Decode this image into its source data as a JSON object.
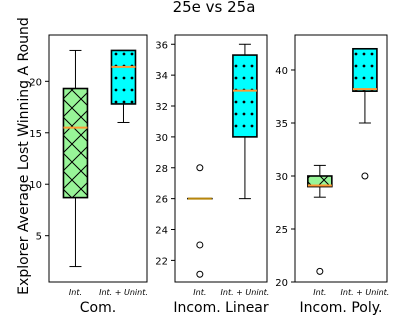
{
  "chart_data": {
    "type": "box",
    "title": "25e vs 25a",
    "ylabel": "Explorer Average Lost Winning A Round",
    "colors": {
      "int_fill": "#98f598",
      "unint_fill": "#00ffff",
      "median": "#ff9933",
      "median_int_linear": "#b8860b",
      "box_edge": "#000000"
    },
    "panels": [
      {
        "xlabel": "Com.",
        "categories": [
          "Int.",
          "Int. + Unint."
        ],
        "ylim": [
          0.5,
          24.5
        ],
        "yticks": [
          5,
          10,
          15,
          20
        ],
        "boxes": [
          {
            "category": "Int.",
            "min": 2,
            "q1": 8.7,
            "median": 15.5,
            "q3": 19.3,
            "max": 23,
            "outliers": [],
            "pattern": "crosshatch"
          },
          {
            "category": "Int. + Unint.",
            "min": 16,
            "q1": 17.8,
            "median": 21.4,
            "q3": 23,
            "max": 23,
            "outliers": [],
            "pattern": "dots"
          }
        ]
      },
      {
        "xlabel": "Incom. Linear",
        "categories": [
          "Int.",
          "Int. + Unint."
        ],
        "ylim": [
          20.6,
          36.6
        ],
        "yticks": [
          22,
          24,
          26,
          28,
          30,
          32,
          34,
          36
        ],
        "boxes": [
          {
            "category": "Int.",
            "min": 26,
            "q1": 26,
            "median": 26,
            "q3": 26,
            "max": 26,
            "outliers": [
              28,
              23,
              21.1
            ],
            "pattern": "none"
          },
          {
            "category": "Int. + Unint.",
            "min": 26,
            "q1": 30,
            "median": 33,
            "q3": 35.3,
            "max": 36,
            "outliers": [],
            "pattern": "dots"
          }
        ]
      },
      {
        "xlabel": "Incom. Poly.",
        "categories": [
          "Int.",
          "Int. + Unint."
        ],
        "ylim": [
          20,
          43.3
        ],
        "yticks": [
          20,
          25,
          30,
          35,
          40
        ],
        "boxes": [
          {
            "category": "Int.",
            "min": 28,
            "q1": 29,
            "median": 29.1,
            "q3": 30,
            "max": 31,
            "outliers": [
              21
            ],
            "pattern": "crosshatch"
          },
          {
            "category": "Int. + Unint.",
            "min": 35,
            "q1": 38,
            "median": 38.2,
            "q3": 42,
            "max": 42,
            "outliers": [
              30
            ],
            "pattern": "dots"
          }
        ]
      }
    ]
  }
}
